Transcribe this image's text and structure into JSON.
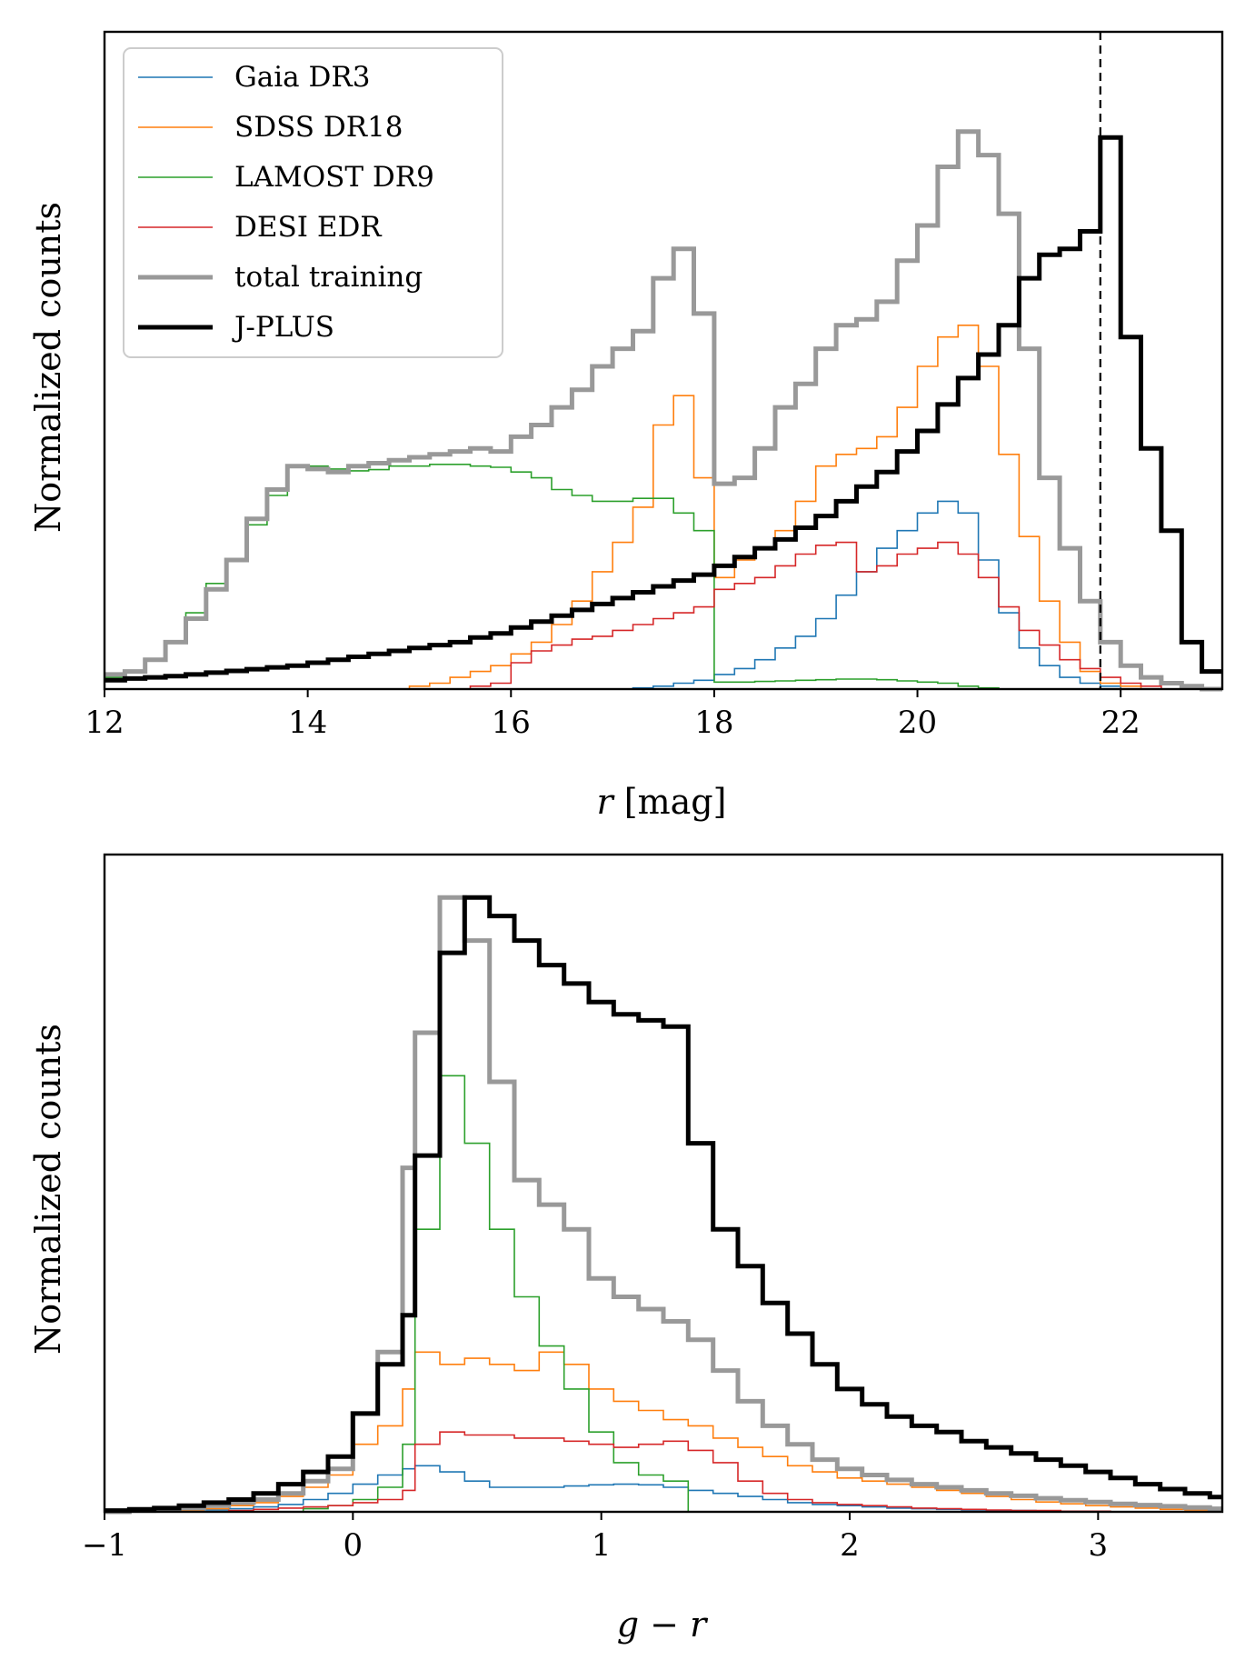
{
  "chart_data": [
    {
      "type": "step-histogram",
      "xlabel": "r [mag]",
      "ylabel": "Normalized counts",
      "xlim": [
        12,
        23
      ],
      "ylim": [
        0,
        1.12
      ],
      "xticks": [
        12,
        14,
        16,
        18,
        20,
        22
      ],
      "xtick_labels": [
        "12",
        "14",
        "16",
        "18",
        "20",
        "22"
      ],
      "vline": 21.8,
      "legend_position": "top-left",
      "bin_edges": [
        12.0,
        12.2,
        12.4,
        12.6,
        12.8,
        13.0,
        13.2,
        13.4,
        13.6,
        13.8,
        14.0,
        14.2,
        14.4,
        14.6,
        14.8,
        15.0,
        15.2,
        15.4,
        15.6,
        15.8,
        16.0,
        16.2,
        16.4,
        16.6,
        16.8,
        17.0,
        17.2,
        17.4,
        17.6,
        17.8,
        18.0,
        18.2,
        18.4,
        18.6,
        18.8,
        19.0,
        19.2,
        19.4,
        19.6,
        19.8,
        20.0,
        20.2,
        20.4,
        20.6,
        20.8,
        21.0,
        21.2,
        21.4,
        21.6,
        21.8,
        22.0,
        22.2,
        22.4,
        22.6,
        22.8,
        23.0
      ],
      "series": [
        {
          "name": "Gaia DR3",
          "color": "#1f77b4",
          "linewidth": 1.6,
          "values": [
            0,
            0,
            0,
            0,
            0,
            0,
            0,
            0,
            0,
            0,
            0,
            0,
            0,
            0,
            0,
            0,
            0,
            0,
            0,
            0,
            0,
            0,
            0,
            0,
            0,
            0,
            0.002,
            0.005,
            0.01,
            0.015,
            0.025,
            0.035,
            0.05,
            0.07,
            0.09,
            0.12,
            0.16,
            0.2,
            0.24,
            0.27,
            0.3,
            0.32,
            0.3,
            0.22,
            0.13,
            0.07,
            0.04,
            0.02,
            0.01,
            0.005,
            0,
            0,
            0,
            0,
            0
          ]
        },
        {
          "name": "SDSS DR18",
          "color": "#ff7f0e",
          "linewidth": 1.6,
          "values": [
            0,
            0,
            0,
            0,
            0,
            0,
            0,
            0,
            0,
            0,
            0,
            0,
            0,
            0,
            0,
            0.005,
            0.01,
            0.02,
            0.03,
            0.04,
            0.06,
            0.08,
            0.11,
            0.15,
            0.2,
            0.25,
            0.31,
            0.45,
            0.5,
            0.36,
            0.19,
            0.22,
            0.24,
            0.27,
            0.32,
            0.38,
            0.4,
            0.41,
            0.43,
            0.48,
            0.55,
            0.6,
            0.62,
            0.55,
            0.4,
            0.26,
            0.15,
            0.08,
            0.03,
            0.01,
            0.005,
            0,
            0,
            0,
            0
          ]
        },
        {
          "name": "LAMOST DR9",
          "color": "#2ca02c",
          "linewidth": 1.6,
          "values": [
            0.02,
            0.03,
            0.05,
            0.08,
            0.13,
            0.18,
            0.22,
            0.28,
            0.33,
            0.38,
            0.38,
            0.375,
            0.372,
            0.374,
            0.38,
            0.38,
            0.383,
            0.383,
            0.38,
            0.378,
            0.37,
            0.36,
            0.34,
            0.33,
            0.32,
            0.32,
            0.325,
            0.325,
            0.3,
            0.27,
            0.012,
            0.012,
            0.013,
            0.014,
            0.015,
            0.016,
            0.017,
            0.017,
            0.016,
            0.014,
            0.012,
            0.01,
            0.005,
            0.002,
            0,
            0,
            0,
            0,
            0,
            0,
            0,
            0,
            0,
            0,
            0
          ]
        },
        {
          "name": "DESI EDR",
          "color": "#d62728",
          "linewidth": 1.6,
          "values": [
            0,
            0,
            0,
            0,
            0,
            0,
            0,
            0,
            0,
            0,
            0,
            0,
            0,
            0,
            0,
            0,
            0,
            0,
            0.005,
            0.01,
            0.045,
            0.065,
            0.075,
            0.085,
            0.09,
            0.1,
            0.11,
            0.12,
            0.13,
            0.14,
            0.17,
            0.18,
            0.19,
            0.21,
            0.23,
            0.245,
            0.25,
            0.2,
            0.21,
            0.23,
            0.24,
            0.25,
            0.23,
            0.19,
            0.14,
            0.1,
            0.075,
            0.05,
            0.035,
            0.02,
            0.01,
            0.005,
            0,
            0,
            0
          ]
        },
        {
          "name": "total training",
          "color": "#999999",
          "linewidth": 5,
          "values": [
            0.025,
            0.03,
            0.05,
            0.08,
            0.12,
            0.17,
            0.22,
            0.29,
            0.34,
            0.38,
            0.375,
            0.37,
            0.38,
            0.385,
            0.39,
            0.395,
            0.4,
            0.405,
            0.41,
            0.405,
            0.43,
            0.45,
            0.48,
            0.51,
            0.55,
            0.58,
            0.61,
            0.7,
            0.75,
            0.64,
            0.35,
            0.36,
            0.41,
            0.48,
            0.52,
            0.58,
            0.62,
            0.63,
            0.66,
            0.73,
            0.79,
            0.89,
            0.95,
            0.91,
            0.81,
            0.58,
            0.36,
            0.24,
            0.15,
            0.08,
            0.04,
            0.02,
            0.01,
            0.005,
            0
          ]
        },
        {
          "name": "J-PLUS",
          "color": "#000000",
          "linewidth": 5,
          "values": [
            0.015,
            0.018,
            0.02,
            0.022,
            0.025,
            0.028,
            0.031,
            0.034,
            0.037,
            0.04,
            0.045,
            0.05,
            0.055,
            0.06,
            0.065,
            0.07,
            0.075,
            0.08,
            0.088,
            0.095,
            0.105,
            0.115,
            0.125,
            0.135,
            0.145,
            0.155,
            0.165,
            0.175,
            0.185,
            0.195,
            0.21,
            0.225,
            0.24,
            0.255,
            0.275,
            0.295,
            0.32,
            0.345,
            0.37,
            0.405,
            0.44,
            0.485,
            0.53,
            0.57,
            0.62,
            0.7,
            0.74,
            0.75,
            0.78,
            0.94,
            0.6,
            0.41,
            0.27,
            0.08,
            0.03
          ]
        }
      ]
    },
    {
      "type": "step-histogram",
      "xlabel": "g − r",
      "ylabel": "Normalized counts",
      "xlim": [
        -1,
        3.5
      ],
      "ylim": [
        0,
        1.07
      ],
      "xticks": [
        -1,
        0,
        1,
        2,
        3
      ],
      "xtick_labels": [
        "−1",
        "0",
        "1",
        "2",
        "3"
      ],
      "bin_edges": [
        -1.0,
        -0.9,
        -0.8,
        -0.7,
        -0.6,
        -0.5,
        -0.4,
        -0.3,
        -0.2,
        -0.1,
        0.0,
        0.1,
        0.2,
        0.25,
        0.35,
        0.45,
        0.55,
        0.65,
        0.75,
        0.85,
        0.95,
        1.05,
        1.15,
        1.25,
        1.35,
        1.45,
        1.55,
        1.65,
        1.75,
        1.85,
        1.95,
        2.05,
        2.15,
        2.25,
        2.35,
        2.45,
        2.55,
        2.65,
        2.75,
        2.85,
        2.95,
        3.05,
        3.15,
        3.25,
        3.35,
        3.45,
        3.5
      ],
      "series": [
        {
          "name": "Gaia DR3",
          "color": "#1f77b4",
          "linewidth": 1.6,
          "values": [
            0,
            0,
            0,
            0.002,
            0.003,
            0.005,
            0.008,
            0.012,
            0.02,
            0.03,
            0.045,
            0.06,
            0.07,
            0.075,
            0.065,
            0.05,
            0.04,
            0.04,
            0.04,
            0.042,
            0.044,
            0.045,
            0.044,
            0.04,
            0.035,
            0.03,
            0.025,
            0.02,
            0.015,
            0.012,
            0.01,
            0.008,
            0.006,
            0.005,
            0.004,
            0.003,
            0.002,
            0.002,
            0.001,
            0.001,
            0,
            0,
            0,
            0,
            0,
            0
          ]
        },
        {
          "name": "SDSS DR18",
          "color": "#ff7f0e",
          "linewidth": 1.6,
          "values": [
            0,
            0,
            0,
            0.002,
            0.005,
            0.01,
            0.015,
            0.025,
            0.04,
            0.06,
            0.11,
            0.14,
            0.2,
            0.26,
            0.24,
            0.25,
            0.24,
            0.23,
            0.26,
            0.24,
            0.2,
            0.18,
            0.165,
            0.15,
            0.14,
            0.12,
            0.105,
            0.09,
            0.075,
            0.065,
            0.055,
            0.05,
            0.045,
            0.04,
            0.035,
            0.03,
            0.025,
            0.02,
            0.016,
            0.013,
            0.01,
            0.008,
            0.006,
            0.004,
            0.003,
            0.002
          ]
        },
        {
          "name": "LAMOST DR9",
          "color": "#2ca02c",
          "linewidth": 1.6,
          "values": [
            0,
            0,
            0,
            0,
            0,
            0,
            0,
            0,
            0.005,
            0.01,
            0.02,
            0.04,
            0.11,
            0.46,
            0.71,
            0.6,
            0.46,
            0.35,
            0.27,
            0.2,
            0.13,
            0.08,
            0.06,
            0.05,
            0,
            0,
            0,
            0,
            0,
            0,
            0,
            0,
            0,
            0,
            0,
            0,
            0,
            0,
            0,
            0,
            0,
            0,
            0,
            0,
            0,
            0
          ]
        },
        {
          "name": "DESI EDR",
          "color": "#d62728",
          "linewidth": 1.6,
          "values": [
            0,
            0,
            0,
            0,
            0,
            0.002,
            0.004,
            0.006,
            0.008,
            0.01,
            0.015,
            0.02,
            0.035,
            0.11,
            0.13,
            0.125,
            0.125,
            0.12,
            0.12,
            0.115,
            0.11,
            0.105,
            0.11,
            0.115,
            0.1,
            0.08,
            0.05,
            0.03,
            0.02,
            0.015,
            0.012,
            0.01,
            0.008,
            0.006,
            0.005,
            0.004,
            0.003,
            0.002,
            0.002,
            0.001,
            0.001,
            0,
            0,
            0,
            0,
            0
          ]
        },
        {
          "name": "total training",
          "color": "#999999",
          "linewidth": 5,
          "values": [
            0,
            0.002,
            0.004,
            0.006,
            0.01,
            0.015,
            0.02,
            0.03,
            0.05,
            0.07,
            0.16,
            0.26,
            0.56,
            0.78,
            1.0,
            0.93,
            0.7,
            0.54,
            0.5,
            0.46,
            0.38,
            0.35,
            0.33,
            0.31,
            0.28,
            0.23,
            0.18,
            0.14,
            0.11,
            0.085,
            0.07,
            0.06,
            0.052,
            0.045,
            0.04,
            0.035,
            0.03,
            0.026,
            0.022,
            0.019,
            0.016,
            0.013,
            0.011,
            0.009,
            0.007,
            0.005
          ]
        },
        {
          "name": "J-PLUS",
          "color": "#000000",
          "linewidth": 5,
          "values": [
            0.002,
            0.004,
            0.006,
            0.01,
            0.015,
            0.02,
            0.03,
            0.045,
            0.065,
            0.09,
            0.16,
            0.24,
            0.32,
            0.58,
            0.91,
            1.0,
            0.97,
            0.93,
            0.89,
            0.86,
            0.83,
            0.81,
            0.8,
            0.79,
            0.6,
            0.46,
            0.4,
            0.34,
            0.29,
            0.24,
            0.2,
            0.175,
            0.155,
            0.14,
            0.13,
            0.115,
            0.105,
            0.095,
            0.085,
            0.075,
            0.065,
            0.055,
            0.045,
            0.037,
            0.03,
            0.024
          ]
        }
      ]
    }
  ]
}
